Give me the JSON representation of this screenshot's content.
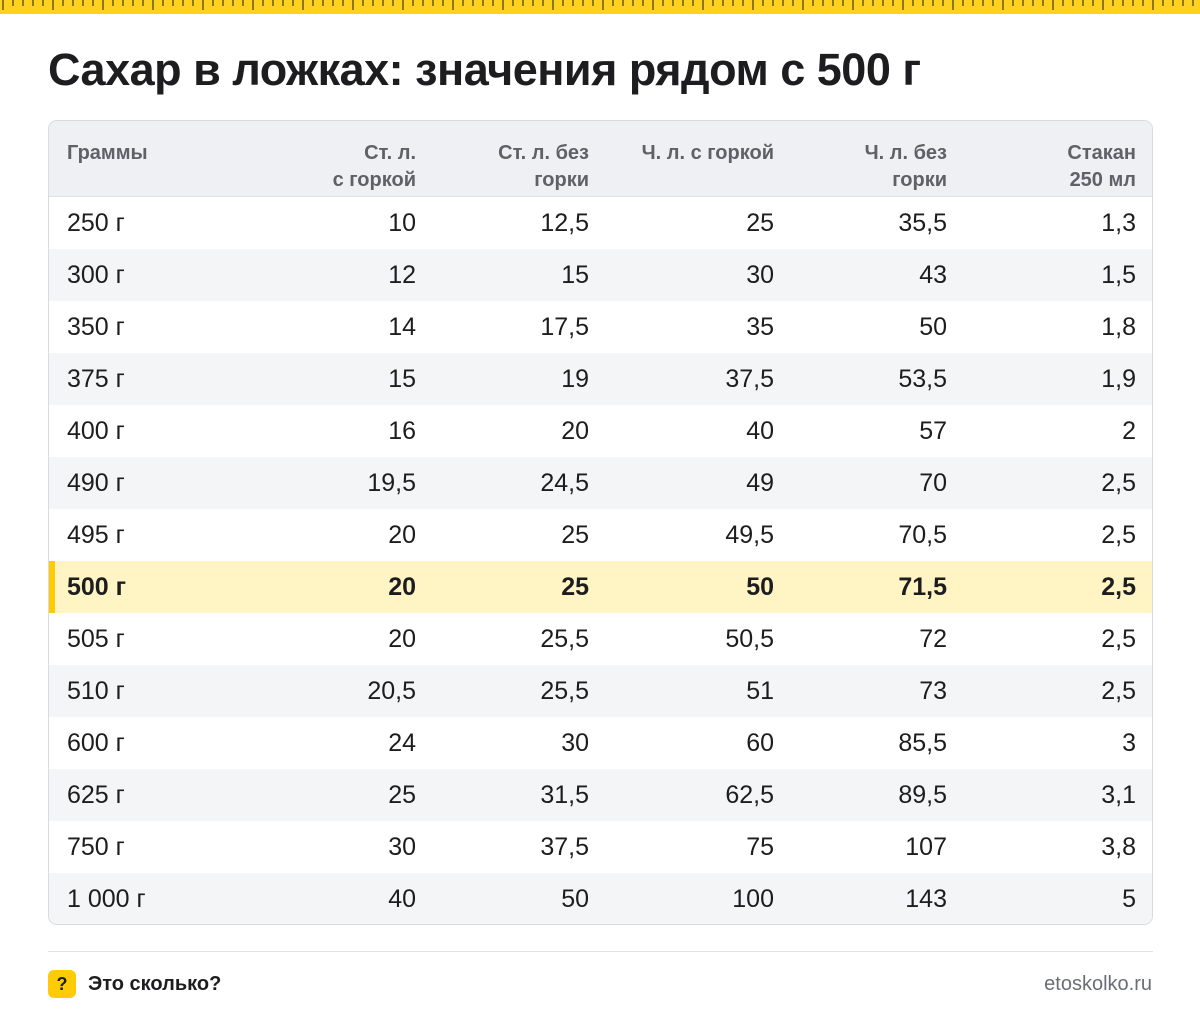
{
  "colors": {
    "accent": "#ffcb05",
    "ruler": "#ffd21f",
    "highlight_row": "#fff4c4",
    "header_bg": "#eef0f3"
  },
  "title": "Сахар в ложках: значения рядом с 500 г",
  "table": {
    "headers": [
      {
        "line1": "Граммы",
        "line2": ""
      },
      {
        "line1": "Ст. л.",
        "line2": "с горкой"
      },
      {
        "line1": "Ст. л. без",
        "line2": "горки"
      },
      {
        "line1": "Ч. л. с горкой",
        "line2": ""
      },
      {
        "line1": "Ч. л. без",
        "line2": "горки"
      },
      {
        "line1": "Стакан",
        "line2": "250 мл"
      }
    ],
    "rows": [
      [
        "250 г",
        "10",
        "12,5",
        "25",
        "35,5",
        "1,3"
      ],
      [
        "300 г",
        "12",
        "15",
        "30",
        "43",
        "1,5"
      ],
      [
        "350 г",
        "14",
        "17,5",
        "35",
        "50",
        "1,8"
      ],
      [
        "375 г",
        "15",
        "19",
        "37,5",
        "53,5",
        "1,9"
      ],
      [
        "400 г",
        "16",
        "20",
        "40",
        "57",
        "2"
      ],
      [
        "490 г",
        "19,5",
        "24,5",
        "49",
        "70",
        "2,5"
      ],
      [
        "495 г",
        "20",
        "25",
        "49,5",
        "70,5",
        "2,5"
      ],
      [
        "500 г",
        "20",
        "25",
        "50",
        "71,5",
        "2,5"
      ],
      [
        "505 г",
        "20",
        "25,5",
        "50,5",
        "72",
        "2,5"
      ],
      [
        "510 г",
        "20,5",
        "25,5",
        "51",
        "73",
        "2,5"
      ],
      [
        "600 г",
        "24",
        "30",
        "60",
        "85,5",
        "3"
      ],
      [
        "625 г",
        "25",
        "31,5",
        "62,5",
        "89,5",
        "3,1"
      ],
      [
        "750 г",
        "30",
        "37,5",
        "75",
        "107",
        "3,8"
      ],
      [
        "1 000 г",
        "40",
        "50",
        "100",
        "143",
        "5"
      ]
    ],
    "highlighted_row": "500 г"
  },
  "footer": {
    "badge_icon": "question-mark-icon",
    "badge_text": "?",
    "brand": "Это сколько?",
    "site": "etoskolko.ru"
  }
}
